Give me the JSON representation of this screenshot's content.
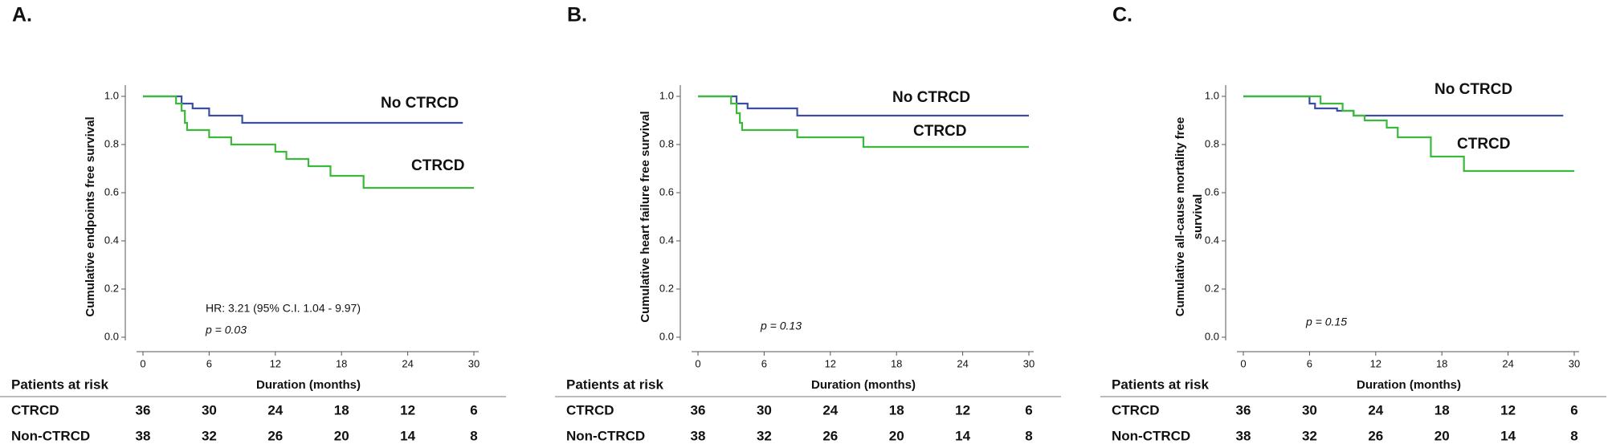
{
  "chart_data": [
    {
      "type": "step",
      "panel_label": "A.",
      "ylabel": "Cumulative endpoints free survival",
      "xlabel": "Duration (months)",
      "xlim": [
        0,
        30
      ],
      "xticks": [
        0,
        6,
        12,
        18,
        24,
        30
      ],
      "ylim": [
        0,
        1
      ],
      "yticks": [
        {
          "value": 0,
          "label": "0.0"
        },
        0.2,
        0.4,
        0.6,
        0.8,
        {
          "value": 1,
          "label": "1.0"
        }
      ],
      "series": [
        {
          "name": "No CTRCD",
          "color": "#3a4fa3",
          "x": [
            0,
            3.5,
            4.5,
            6,
            9,
            29
          ],
          "values": [
            1,
            0.97,
            0.95,
            0.92,
            0.89,
            0.89
          ]
        },
        {
          "name": "CTRCD",
          "color": "#3cb83c",
          "x": [
            0,
            3,
            3.5,
            3.8,
            4,
            6,
            8,
            12,
            13,
            15,
            17,
            20,
            30
          ],
          "values": [
            1,
            0.97,
            0.94,
            0.89,
            0.86,
            0.83,
            0.8,
            0.77,
            0.74,
            0.71,
            0.67,
            0.62,
            0.62
          ]
        }
      ],
      "annotations": [
        "HR: 3.21 (95% C.I. 1.04 - 9.97)",
        "p = 0.03"
      ],
      "risk_table": {
        "title": "Patients at risk",
        "rows": [
          {
            "name": "CTRCD",
            "values": [
              36,
              30,
              24,
              18,
              12,
              6
            ]
          },
          {
            "name": "Non-CTRCD",
            "values": [
              38,
              32,
              26,
              20,
              14,
              8
            ]
          }
        ]
      }
    },
    {
      "type": "step",
      "panel_label": "B.",
      "ylabel": "Cumulative heart failure free survival",
      "xlabel": "Duration (months)",
      "xlim": [
        0,
        30
      ],
      "xticks": [
        0,
        6,
        12,
        18,
        24,
        30
      ],
      "ylim": [
        0,
        1
      ],
      "yticks": [
        {
          "value": 0,
          "label": "0.0"
        },
        0.2,
        0.4,
        0.6,
        0.8,
        {
          "value": 1,
          "label": "1.0"
        }
      ],
      "series": [
        {
          "name": "No CTRCD",
          "color": "#3a4fa3",
          "x": [
            0,
            3.5,
            4.5,
            9,
            30
          ],
          "values": [
            1,
            0.97,
            0.95,
            0.92,
            0.92
          ]
        },
        {
          "name": "CTRCD",
          "color": "#3cb83c",
          "x": [
            0,
            3,
            3.5,
            3.8,
            4,
            9,
            15,
            30
          ],
          "values": [
            1,
            0.97,
            0.93,
            0.89,
            0.86,
            0.83,
            0.79,
            0.79
          ]
        }
      ],
      "annotations": [
        "p = 0.13"
      ],
      "risk_table": {
        "title": "Patients at risk",
        "rows": [
          {
            "name": "CTRCD",
            "values": [
              36,
              30,
              24,
              18,
              12,
              6
            ]
          },
          {
            "name": "Non-CTRCD",
            "values": [
              38,
              32,
              26,
              20,
              14,
              8
            ]
          }
        ]
      }
    },
    {
      "type": "step",
      "panel_label": "C.",
      "ylabel": [
        "Cumulative all-cause mortality free",
        "survival"
      ],
      "xlabel": "Duration (months)",
      "xlim": [
        0,
        30
      ],
      "xticks": [
        0,
        6,
        12,
        18,
        24,
        30
      ],
      "ylim": [
        0,
        1
      ],
      "yticks": [
        {
          "value": 0,
          "label": "0.0"
        },
        0.2,
        0.4,
        0.6,
        0.8,
        {
          "value": 1,
          "label": "1.0"
        }
      ],
      "series": [
        {
          "name": "No CTRCD",
          "color": "#3a4fa3",
          "x": [
            0,
            6,
            6.5,
            8.5,
            10,
            29
          ],
          "values": [
            1,
            0.97,
            0.95,
            0.94,
            0.92,
            0.92
          ]
        },
        {
          "name": "CTRCD",
          "color": "#3cb83c",
          "x": [
            0,
            7,
            9,
            10,
            11,
            13,
            14,
            17,
            20,
            30
          ],
          "values": [
            1,
            0.97,
            0.94,
            0.92,
            0.9,
            0.87,
            0.83,
            0.75,
            0.69,
            0.69
          ]
        }
      ],
      "annotations": [
        "p = 0.15"
      ],
      "risk_table": {
        "title": "Patients at risk",
        "rows": [
          {
            "name": "CTRCD",
            "values": [
              36,
              30,
              24,
              18,
              12,
              6
            ]
          },
          {
            "name": "Non-CTRCD",
            "values": [
              38,
              32,
              26,
              20,
              14,
              8
            ]
          }
        ]
      }
    }
  ]
}
